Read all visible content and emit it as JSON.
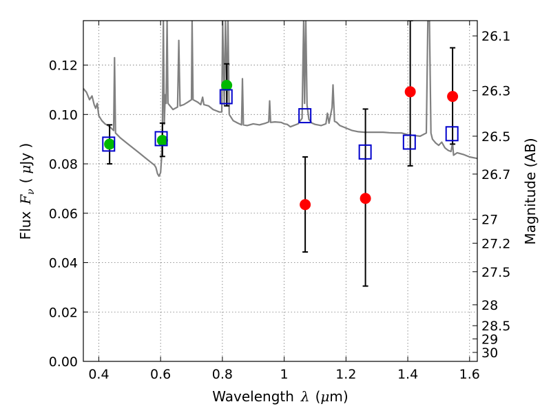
{
  "chart_data": {
    "type": "scatter",
    "xlabel_prefix": "Wavelength",
    "xlabel_var": "λ",
    "xlabel_unit_open": "(",
    "xlabel_unit_mu": "μ",
    "xlabel_unit_rest": "m)",
    "ylabel_prefix": "Flux",
    "ylabel_var": "F",
    "ylabel_sub": "ν",
    "ylabel_unit_open": "(",
    "ylabel_unit_mu": "μ",
    "ylabel_unit_rest": "Jy )",
    "y2label": "Magnitude (AB)",
    "xlim": [
      0.35,
      1.625
    ],
    "ylim": [
      0.0,
      0.138
    ],
    "grid": true,
    "x_ticks": [
      {
        "value": 0.4,
        "label": "0.4"
      },
      {
        "value": 0.6,
        "label": "0.6"
      },
      {
        "value": 0.8,
        "label": "0.8"
      },
      {
        "value": 1.0,
        "label": "1"
      },
      {
        "value": 1.2,
        "label": "1.2"
      },
      {
        "value": 1.4,
        "label": "1.4"
      },
      {
        "value": 1.6,
        "label": "1.6"
      }
    ],
    "y_ticks": [
      {
        "value": 0.0,
        "label": "0.00"
      },
      {
        "value": 0.02,
        "label": "0.02"
      },
      {
        "value": 0.04,
        "label": "0.04"
      },
      {
        "value": 0.06,
        "label": "0.06"
      },
      {
        "value": 0.08,
        "label": "0.08"
      },
      {
        "value": 0.1,
        "label": "0.10"
      },
      {
        "value": 0.12,
        "label": "0.12"
      }
    ],
    "y2_ticks": [
      {
        "value": 26.1,
        "label": "26.1"
      },
      {
        "value": 26.3,
        "label": "26.3"
      },
      {
        "value": 26.5,
        "label": "26.5"
      },
      {
        "value": 26.7,
        "label": "26.7"
      },
      {
        "value": 27.0,
        "label": "27"
      },
      {
        "value": 27.2,
        "label": "27.2"
      },
      {
        "value": 27.5,
        "label": "27.5"
      },
      {
        "value": 28.0,
        "label": "28"
      },
      {
        "value": 28.5,
        "label": "28.5"
      },
      {
        "value": 29.0,
        "label": "29"
      },
      {
        "value": 30.0,
        "label": "30"
      }
    ],
    "series": [
      {
        "kind": "model-spectrum",
        "color": "#808080",
        "points": [
          [
            0.35,
            0.1105
          ],
          [
            0.36,
            0.109
          ],
          [
            0.37,
            0.106
          ],
          [
            0.378,
            0.1075
          ],
          [
            0.385,
            0.104
          ],
          [
            0.39,
            0.1025
          ],
          [
            0.395,
            0.1045
          ],
          [
            0.4,
            0.0995
          ],
          [
            0.41,
            0.0975
          ],
          [
            0.42,
            0.0962
          ],
          [
            0.43,
            0.0955
          ],
          [
            0.44,
            0.0945
          ],
          [
            0.448,
            0.0935
          ],
          [
            0.451,
            0.123
          ],
          [
            0.454,
            0.0925
          ],
          [
            0.47,
            0.0905
          ],
          [
            0.49,
            0.0885
          ],
          [
            0.51,
            0.0865
          ],
          [
            0.53,
            0.0845
          ],
          [
            0.55,
            0.0825
          ],
          [
            0.57,
            0.0805
          ],
          [
            0.58,
            0.0795
          ],
          [
            0.585,
            0.0785
          ],
          [
            0.59,
            0.076
          ],
          [
            0.595,
            0.075
          ],
          [
            0.6,
            0.0765
          ],
          [
            0.603,
            0.082
          ],
          [
            0.606,
            0.095
          ],
          [
            0.609,
            0.138
          ],
          [
            0.612,
            0.096
          ],
          [
            0.615,
            0.108
          ],
          [
            0.618,
            0.1045
          ],
          [
            0.621,
            0.138
          ],
          [
            0.624,
            0.1045
          ],
          [
            0.64,
            0.102
          ],
          [
            0.655,
            0.103
          ],
          [
            0.659,
            0.13
          ],
          [
            0.663,
            0.1035
          ],
          [
            0.675,
            0.104
          ],
          [
            0.688,
            0.105
          ],
          [
            0.7,
            0.106
          ],
          [
            0.702,
            0.138
          ],
          [
            0.705,
            0.106
          ],
          [
            0.72,
            0.105
          ],
          [
            0.73,
            0.104
          ],
          [
            0.736,
            0.107
          ],
          [
            0.74,
            0.104
          ],
          [
            0.755,
            0.1035
          ],
          [
            0.77,
            0.102
          ],
          [
            0.78,
            0.1015
          ],
          [
            0.79,
            0.101
          ],
          [
            0.798,
            0.101
          ],
          [
            0.801,
            0.138
          ],
          [
            0.806,
            0.104
          ],
          [
            0.81,
            0.138
          ],
          [
            0.815,
            0.1035
          ],
          [
            0.818,
            0.138
          ],
          [
            0.822,
            0.1
          ],
          [
            0.835,
            0.0975
          ],
          [
            0.85,
            0.0965
          ],
          [
            0.862,
            0.0958
          ],
          [
            0.865,
            0.1145
          ],
          [
            0.868,
            0.0958
          ],
          [
            0.88,
            0.0955
          ],
          [
            0.9,
            0.0962
          ],
          [
            0.92,
            0.0958
          ],
          [
            0.94,
            0.0965
          ],
          [
            0.95,
            0.097
          ],
          [
            0.953,
            0.1055
          ],
          [
            0.956,
            0.0968
          ],
          [
            0.97,
            0.097
          ],
          [
            0.99,
            0.0968
          ],
          [
            1.0,
            0.0962
          ],
          [
            1.01,
            0.096
          ],
          [
            1.02,
            0.095
          ],
          [
            1.045,
            0.0962
          ],
          [
            1.058,
            0.0985
          ],
          [
            1.06,
            0.115
          ],
          [
            1.063,
            0.138
          ],
          [
            1.066,
            0.1045
          ],
          [
            1.07,
            0.138
          ],
          [
            1.074,
            0.1038
          ],
          [
            1.08,
            0.098
          ],
          [
            1.09,
            0.0965
          ],
          [
            1.1,
            0.096
          ],
          [
            1.12,
            0.0955
          ],
          [
            1.135,
            0.0962
          ],
          [
            1.14,
            0.1005
          ],
          [
            1.145,
            0.0965
          ],
          [
            1.155,
            0.1028
          ],
          [
            1.158,
            0.112
          ],
          [
            1.163,
            0.0972
          ],
          [
            1.17,
            0.0968
          ],
          [
            1.18,
            0.0955
          ],
          [
            1.2,
            0.0945
          ],
          [
            1.22,
            0.0935
          ],
          [
            1.24,
            0.093
          ],
          [
            1.26,
            0.0928
          ],
          [
            1.28,
            0.0928
          ],
          [
            1.3,
            0.0928
          ],
          [
            1.32,
            0.0928
          ],
          [
            1.34,
            0.0926
          ],
          [
            1.36,
            0.0925
          ],
          [
            1.38,
            0.0925
          ],
          [
            1.4,
            0.0918
          ],
          [
            1.42,
            0.0915
          ],
          [
            1.44,
            0.0912
          ],
          [
            1.46,
            0.0925
          ],
          [
            1.465,
            0.138
          ],
          [
            1.47,
            0.138
          ],
          [
            1.475,
            0.0925
          ],
          [
            1.48,
            0.09
          ],
          [
            1.49,
            0.0885
          ],
          [
            1.5,
            0.0875
          ],
          [
            1.51,
            0.0888
          ],
          [
            1.52,
            0.0865
          ],
          [
            1.53,
            0.0855
          ],
          [
            1.54,
            0.085
          ],
          [
            1.545,
            0.0885
          ],
          [
            1.548,
            0.0835
          ],
          [
            1.56,
            0.0845
          ],
          [
            1.58,
            0.0838
          ],
          [
            1.6,
            0.0828
          ],
          [
            1.625,
            0.0822
          ]
        ]
      },
      {
        "kind": "green-points",
        "color": "#00b800",
        "points": [
          {
            "x": 0.435,
            "y": 0.088
          },
          {
            "x": 0.606,
            "y": 0.0895
          },
          {
            "x": 0.814,
            "y": 0.1118
          }
        ]
      },
      {
        "kind": "red-points",
        "color": "#ff0000",
        "points": [
          {
            "x": 1.068,
            "y": 0.0635
          },
          {
            "x": 1.263,
            "y": 0.066
          },
          {
            "x": 1.408,
            "y": 0.1092
          },
          {
            "x": 1.545,
            "y": 0.1073
          }
        ]
      },
      {
        "kind": "blue-open-squares",
        "color": "#0000cc",
        "points": [
          {
            "x": 0.432,
            "y": 0.088
          },
          {
            "x": 0.602,
            "y": 0.0902
          },
          {
            "x": 0.812,
            "y": 0.1072
          },
          {
            "x": 1.067,
            "y": 0.0995
          },
          {
            "x": 1.262,
            "y": 0.0848
          },
          {
            "x": 1.405,
            "y": 0.0888
          },
          {
            "x": 1.543,
            "y": 0.0922
          }
        ]
      }
    ],
    "error_bars": [
      {
        "x": 0.435,
        "low": 0.08,
        "high": 0.0958
      },
      {
        "x": 0.606,
        "low": 0.083,
        "high": 0.0965
      },
      {
        "x": 0.814,
        "low": 0.1035,
        "high": 0.1205
      },
      {
        "x": 1.068,
        "low": 0.0443,
        "high": 0.0828
      },
      {
        "x": 1.263,
        "low": 0.0305,
        "high": 0.1022
      },
      {
        "x": 1.408,
        "low": 0.0792,
        "high": 0.138
      },
      {
        "x": 1.545,
        "low": 0.088,
        "high": 0.127
      }
    ]
  }
}
